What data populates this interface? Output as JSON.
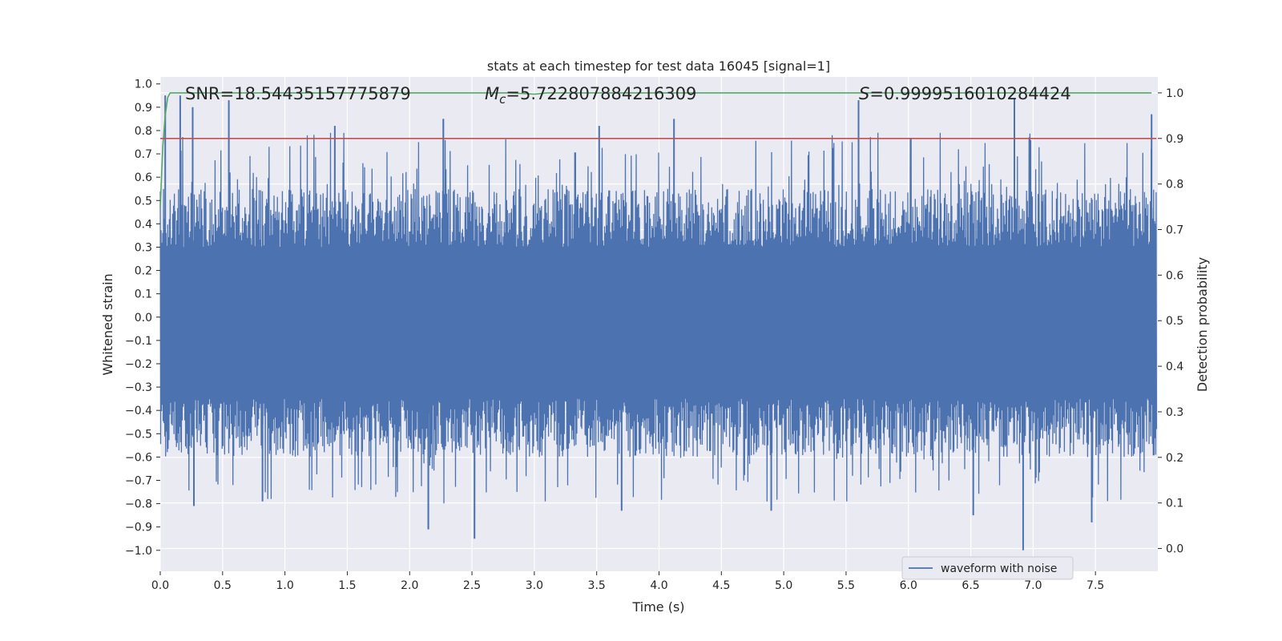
{
  "chart_data": {
    "type": "line",
    "title": "stats at each timestep for test data 16045 [signal=1]",
    "xlabel": "Time (s)",
    "ylabel": "Whitened strain",
    "y2label": "Detection probability",
    "xlim": [
      0.0,
      8.0
    ],
    "ylim": [
      -1.09,
      1.03
    ],
    "y2lim": [
      -0.05,
      1.035
    ],
    "x_ticks": [
      0.0,
      0.5,
      1.0,
      1.5,
      2.0,
      2.5,
      3.0,
      3.5,
      4.0,
      4.5,
      5.0,
      5.5,
      6.0,
      6.5,
      7.0,
      7.5
    ],
    "x_tick_labels": [
      "0.0",
      "0.5",
      "1.0",
      "1.5",
      "2.0",
      "2.5",
      "3.0",
      "3.5",
      "4.0",
      "4.5",
      "5.0",
      "5.5",
      "6.0",
      "6.5",
      "7.0",
      "7.5"
    ],
    "y_ticks": [
      1.0,
      0.9,
      0.8,
      0.7,
      0.6,
      0.5,
      0.4,
      0.3,
      0.2,
      0.1,
      0.0,
      -0.1,
      -0.2,
      -0.3,
      -0.4,
      -0.5,
      -0.6,
      -0.7,
      -0.8,
      -0.9,
      -1.0
    ],
    "y_tick_labels": [
      "1.0",
      "0.9",
      "0.8",
      "0.7",
      "0.6",
      "0.5",
      "0.4",
      "0.3",
      "0.2",
      "0.1",
      "0.0",
      "−0.1",
      "−0.2",
      "−0.3",
      "−0.4",
      "−0.5",
      "−0.6",
      "−0.7",
      "−0.8",
      "−0.9",
      "−1.0"
    ],
    "y2_ticks": [
      1.0,
      0.9,
      0.8,
      0.7,
      0.6,
      0.5,
      0.4,
      0.3,
      0.2,
      0.1,
      0.0
    ],
    "y2_tick_labels": [
      "1.0",
      "0.9",
      "0.8",
      "0.7",
      "0.6",
      "0.5",
      "0.4",
      "0.3",
      "0.2",
      "0.1",
      "0.0"
    ],
    "grid": true,
    "legend_position": "lower-right",
    "annotations": {
      "snr": "SNR=18.54435157775879",
      "mc_symbol": "M",
      "mc_sub": "c",
      "mc_value": "=5.722807884216309",
      "s_symbol": "S",
      "s_value": "=0.9999516010284424"
    },
    "series": [
      {
        "name": "waveform with noise",
        "axis": "left",
        "color": "#4c72b0",
        "x_range": [
          0.0,
          7.99
        ],
        "envelope_upper_typical": 0.45,
        "envelope_lower_typical": -0.5,
        "peaks": [
          {
            "x": 0.04,
            "y": 0.95
          },
          {
            "x": 0.16,
            "y": 0.95
          },
          {
            "x": 0.26,
            "y": 0.9
          },
          {
            "x": 0.55,
            "y": 0.93
          },
          {
            "x": 1.4,
            "y": 0.82
          },
          {
            "x": 2.27,
            "y": 0.85
          },
          {
            "x": 3.52,
            "y": 0.82
          },
          {
            "x": 4.12,
            "y": 0.85
          },
          {
            "x": 5.6,
            "y": 0.93
          },
          {
            "x": 6.85,
            "y": 0.94
          },
          {
            "x": 7.95,
            "y": 0.87
          }
        ],
        "troughs": [
          {
            "x": 0.27,
            "y": -0.81
          },
          {
            "x": 0.82,
            "y": -0.79
          },
          {
            "x": 2.15,
            "y": -0.91
          },
          {
            "x": 2.52,
            "y": -0.95
          },
          {
            "x": 3.7,
            "y": -0.83
          },
          {
            "x": 4.9,
            "y": -0.83
          },
          {
            "x": 6.52,
            "y": -0.85
          },
          {
            "x": 6.92,
            "y": -1.0
          },
          {
            "x": 7.47,
            "y": -0.88
          }
        ]
      },
      {
        "axis": "right",
        "color": "#55a868",
        "x": [
          0.0,
          0.02,
          0.04,
          0.06,
          0.08,
          0.12,
          0.2,
          0.4,
          1.0,
          1.5,
          2.0,
          2.2,
          2.8,
          2.95,
          3.0,
          3.1,
          3.3,
          4.0,
          5.0,
          6.0,
          7.0,
          7.95
        ],
        "y": [
          0.75,
          0.88,
          0.95,
          0.99,
          1.0,
          1.0,
          1.0,
          1.0,
          1.0,
          1.0,
          1.0,
          1.0,
          1.0,
          0.998,
          0.997,
          1.0,
          1.0,
          1.0,
          1.0,
          1.0,
          1.0,
          1.0
        ]
      },
      {
        "axis": "right",
        "color": "#c44e52",
        "x": [
          0.0,
          7.99
        ],
        "y": [
          0.9,
          0.9
        ]
      }
    ]
  }
}
